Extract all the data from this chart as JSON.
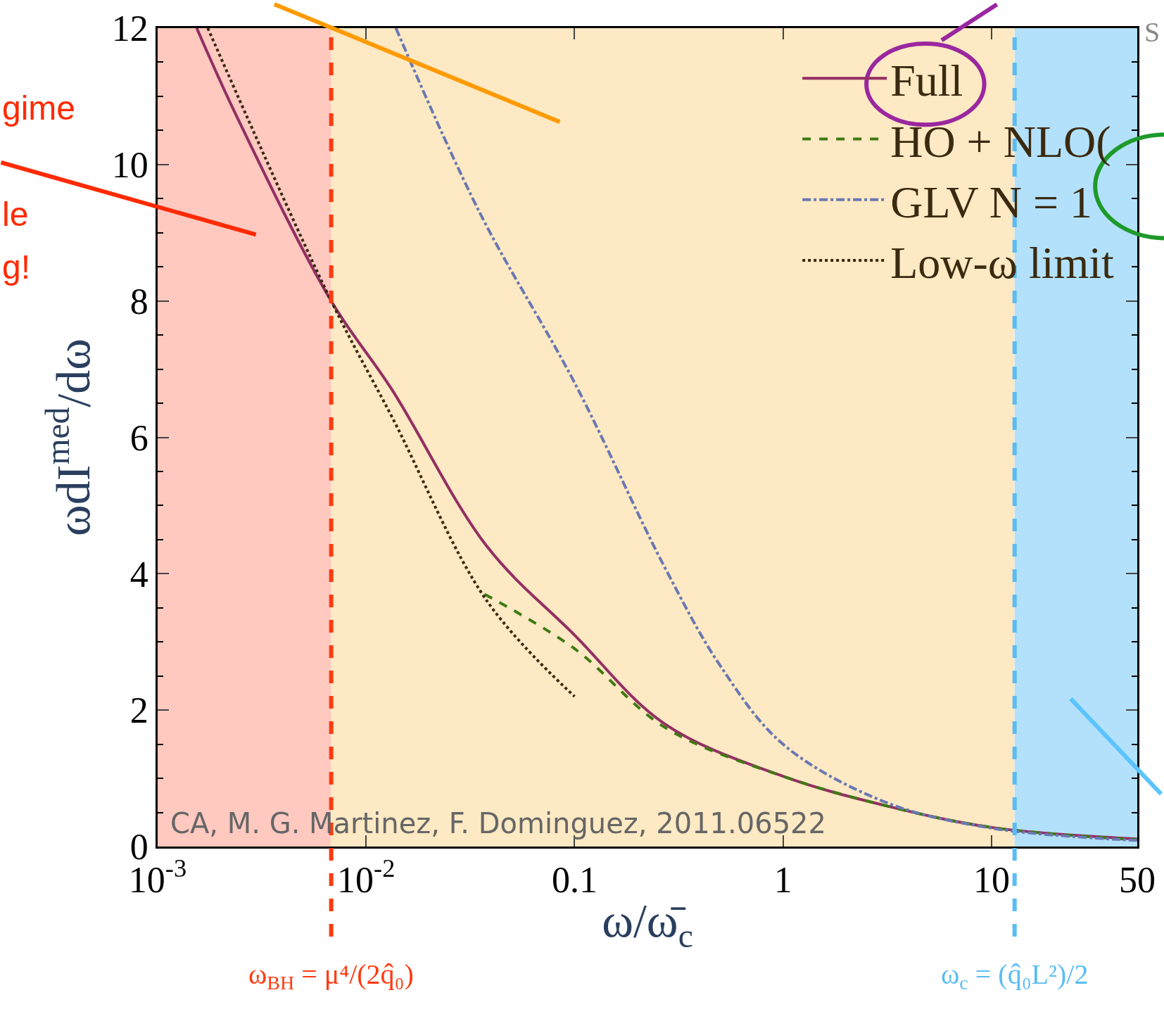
{
  "chart_data": {
    "type": "line",
    "xlabel": "ω/ω̄$_{c}$",
    "ylabel": "ωdI$^{med}$/dω",
    "log": "x",
    "grid": false,
    "legend": "top right",
    "xlim": [
      0.001,
      50
    ],
    "ylim": [
      0,
      12
    ],
    "xticks": [
      {
        "value": 0.001,
        "label": "10$^{-3}$"
      },
      {
        "value": 0.01,
        "label": "10$^{-2}$"
      },
      0.1,
      1,
      10,
      50
    ],
    "yticks": [
      0,
      2,
      4,
      6,
      8,
      10,
      12
    ],
    "series": [
      {
        "name": "Full",
        "color": "#932f62",
        "line_style": "solid",
        "x": [
          0.00154,
          0.0024,
          0.0068,
          0.0133,
          0.038,
          0.1,
          0.27,
          1,
          3.1,
          10,
          50
        ],
        "values": [
          12,
          10.7,
          8.0,
          6.7,
          4.4,
          3.1,
          1.8,
          1.03,
          0.6,
          0.28,
          0.11
        ]
      },
      {
        "name": "HO + NLO(",
        "color": "#3e7a12",
        "line_style": "dashed",
        "x": [
          0.037,
          0.1,
          0.27,
          1,
          3.1,
          10,
          50
        ],
        "values": [
          3.7,
          2.9,
          1.75,
          1.03,
          0.6,
          0.28,
          0.1
        ]
      },
      {
        "name": "GLV N = 1",
        "color": "#6a78b2",
        "line_style": "dashdot",
        "x": [
          0.0139,
          0.035,
          0.1,
          0.27,
          0.5,
          1,
          3.1,
          10,
          50
        ],
        "values": [
          12,
          9.3,
          6.8,
          4.1,
          2.65,
          1.5,
          0.65,
          0.27,
          0.09
        ]
      },
      {
        "name": "Low-ω limit",
        "color": "#3a2810",
        "line_style": "dotted",
        "x": [
          0.00174,
          0.0068,
          0.0133,
          0.038,
          0.1
        ],
        "values": [
          12,
          8.0,
          6.3,
          3.6,
          2.2
        ]
      }
    ],
    "bands": [
      {
        "axis": "x",
        "from": 0.001,
        "to": 0.0068,
        "color": "#ffc9c0"
      },
      {
        "axis": "x",
        "from": 0.0068,
        "to": 12.9,
        "color": "#fde9c3"
      },
      {
        "axis": "x",
        "from": 12.9,
        "to": 50,
        "color": "#b3e1fb"
      }
    ],
    "ref_lines": [
      {
        "axis": "x",
        "value": 0.0068,
        "label": "ω$_{BH}$ = μ⁴/(2q̂₀)",
        "color": "#ff3a10",
        "line_style": "dashed"
      },
      {
        "axis": "x",
        "value": 12.9,
        "label": "ω$_{c}$ = (q̂₀L²)/2",
        "color": "#5bbcf5",
        "line_style": "dashed"
      }
    ],
    "annotations": [
      "CA, M. G. Martinez, F. Dominguez, 2011.06522",
      "gime",
      "le",
      "g!",
      "S"
    ]
  }
}
